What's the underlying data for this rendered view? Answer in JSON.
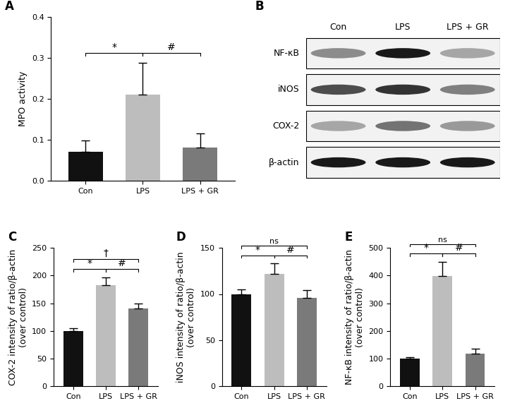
{
  "chart_data": [
    {
      "type": "bar",
      "title": "A",
      "categories": [
        "Con",
        "LPS",
        "LPS + GR"
      ],
      "values": [
        0.07,
        0.21,
        0.08
      ],
      "error": [
        0.028,
        0.078,
        0.035
      ],
      "colors": [
        "#111111",
        "#bdbdbd",
        "#7a7a7a"
      ],
      "y_label": "MPO activity",
      "ylim": [
        0.0,
        0.4
      ],
      "yticks": [
        0.0,
        0.1,
        0.2,
        0.3,
        0.4
      ],
      "annotations": [
        {
          "text": "*",
          "between": [
            "Con",
            "LPS"
          ]
        },
        {
          "text": "#",
          "between": [
            "LPS",
            "LPS + GR"
          ]
        }
      ]
    },
    {
      "type": "blot",
      "title": "B",
      "categories": [
        "Con",
        "LPS",
        "LPS + GR"
      ],
      "series": [
        {
          "name": "NF-κB",
          "values": [
            0.45,
            0.9,
            0.35
          ]
        },
        {
          "name": "iNOS",
          "values": [
            0.7,
            0.8,
            0.5
          ]
        },
        {
          "name": "COX-2",
          "values": [
            0.35,
            0.55,
            0.4
          ]
        },
        {
          "name": "β-actin",
          "values": [
            0.9,
            0.9,
            0.9
          ]
        }
      ]
    },
    {
      "type": "bar",
      "title": "C",
      "categories": [
        "Con",
        "LPS",
        "LPS + GR"
      ],
      "values": [
        100,
        183,
        140
      ],
      "error": [
        5,
        14,
        10
      ],
      "colors": [
        "#111111",
        "#bdbdbd",
        "#7a7a7a"
      ],
      "y_label": "COX-2 intensity of ratio/β-actin\n(over control)",
      "ylim": [
        0,
        250
      ],
      "yticks": [
        0,
        50,
        100,
        150,
        200,
        250
      ],
      "annotations": [
        {
          "text": "*",
          "between": [
            "Con",
            "LPS"
          ]
        },
        {
          "text": "#",
          "between": [
            "LPS",
            "LPS + GR"
          ]
        },
        {
          "text": "†",
          "between": [
            "Con",
            "LPS + GR"
          ]
        }
      ]
    },
    {
      "type": "bar",
      "title": "D",
      "categories": [
        "Con",
        "LPS",
        "LPS + GR"
      ],
      "values": [
        100,
        122,
        96
      ],
      "error": [
        5,
        11,
        8
      ],
      "colors": [
        "#111111",
        "#bdbdbd",
        "#7a7a7a"
      ],
      "y_label": "iNOS intensity of ratio/β-actin\n(over control)",
      "ylim": [
        0,
        150
      ],
      "yticks": [
        0,
        50,
        100,
        150
      ],
      "annotations": [
        {
          "text": "*",
          "between": [
            "Con",
            "LPS"
          ]
        },
        {
          "text": "#",
          "between": [
            "LPS",
            "LPS + GR"
          ]
        },
        {
          "text": "ns",
          "between": [
            "Con",
            "LPS + GR"
          ]
        }
      ]
    },
    {
      "type": "bar",
      "title": "E",
      "categories": [
        "Con",
        "LPS",
        "LPS + GR"
      ],
      "values": [
        100,
        397,
        119
      ],
      "error": [
        5,
        52,
        17
      ],
      "colors": [
        "#111111",
        "#bdbdbd",
        "#7a7a7a"
      ],
      "y_label": "NF-κB intensity of ratio/β-actin\n(over control)",
      "ylim": [
        0,
        500
      ],
      "yticks": [
        0,
        100,
        200,
        300,
        400,
        500
      ],
      "annotations": [
        {
          "text": "*",
          "between": [
            "Con",
            "LPS"
          ]
        },
        {
          "text": "#",
          "between": [
            "LPS",
            "LPS + GR"
          ]
        },
        {
          "text": "ns",
          "between": [
            "Con",
            "LPS + GR"
          ]
        }
      ]
    }
  ]
}
